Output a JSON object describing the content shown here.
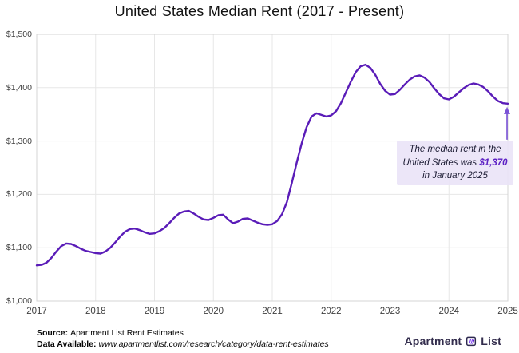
{
  "title": "United States Median Rent (2017 - Present)",
  "chart_data": {
    "type": "line",
    "title": "United States Median Rent (2017 - Present)",
    "x_tick_labels": [
      "2017",
      "2018",
      "2019",
      "2020",
      "2021",
      "2022",
      "2023",
      "2024",
      "2025"
    ],
    "y_ticks": [
      {
        "label": "$1,500",
        "value": 1500
      },
      {
        "label": "$1,400",
        "value": 1400
      },
      {
        "label": "$1,300",
        "value": 1300
      },
      {
        "label": "$1,200",
        "value": 1200
      },
      {
        "label": "$1,100",
        "value": 1100
      },
      {
        "label": "$1,000",
        "value": 1000
      }
    ],
    "ylim": [
      1000,
      1500
    ],
    "x_start": "2017-01",
    "x_end": "2025-01",
    "interval": "monthly",
    "grid": true,
    "legend": "none",
    "line_color": "#5a1cb8",
    "series": [
      {
        "name": "US median rent ($)",
        "values": [
          1067,
          1068,
          1072,
          1081,
          1093,
          1103,
          1108,
          1107,
          1103,
          1098,
          1094,
          1092,
          1090,
          1089,
          1093,
          1100,
          1110,
          1121,
          1130,
          1135,
          1136,
          1133,
          1129,
          1126,
          1127,
          1131,
          1137,
          1146,
          1156,
          1164,
          1168,
          1169,
          1164,
          1158,
          1153,
          1152,
          1156,
          1161,
          1162,
          1153,
          1146,
          1149,
          1154,
          1155,
          1151,
          1147,
          1144,
          1143,
          1144,
          1150,
          1163,
          1186,
          1222,
          1260,
          1296,
          1326,
          1346,
          1352,
          1349,
          1346,
          1348,
          1356,
          1371,
          1391,
          1411,
          1429,
          1440,
          1443,
          1437,
          1424,
          1407,
          1394,
          1387,
          1388,
          1396,
          1406,
          1415,
          1421,
          1423,
          1419,
          1411,
          1399,
          1388,
          1380,
          1378,
          1383,
          1391,
          1399,
          1405,
          1408,
          1406,
          1401,
          1393,
          1383,
          1375,
          1371,
          1370
        ]
      }
    ],
    "final_point": {
      "date": "January 2025",
      "value": 1370
    }
  },
  "annotation": {
    "line1": "The median rent in the",
    "line2_prefix": "United States was ",
    "highlight": "$1,370",
    "line3": "in January 2025"
  },
  "footer": {
    "source_label": "Source:",
    "source_value": "Apartment List Rent Estimates",
    "data_label": "Data Available:",
    "data_value": "www.apartmentlist.com/research/category/data-rent-estimates",
    "logo_word1": "Apartment",
    "logo_word2": "List"
  },
  "colors": {
    "line": "#5a1cb8",
    "arrow": "#7a52d6",
    "grid": "#e7e7e7",
    "plot_border": "#d4d4d4",
    "annotation_bg": "#e9e2f7",
    "annotation_highlight": "#5c20c4",
    "axis_text": "#3f3f3f",
    "logo_text": "#332d4d",
    "logo_icon": "#7d3ff2"
  }
}
